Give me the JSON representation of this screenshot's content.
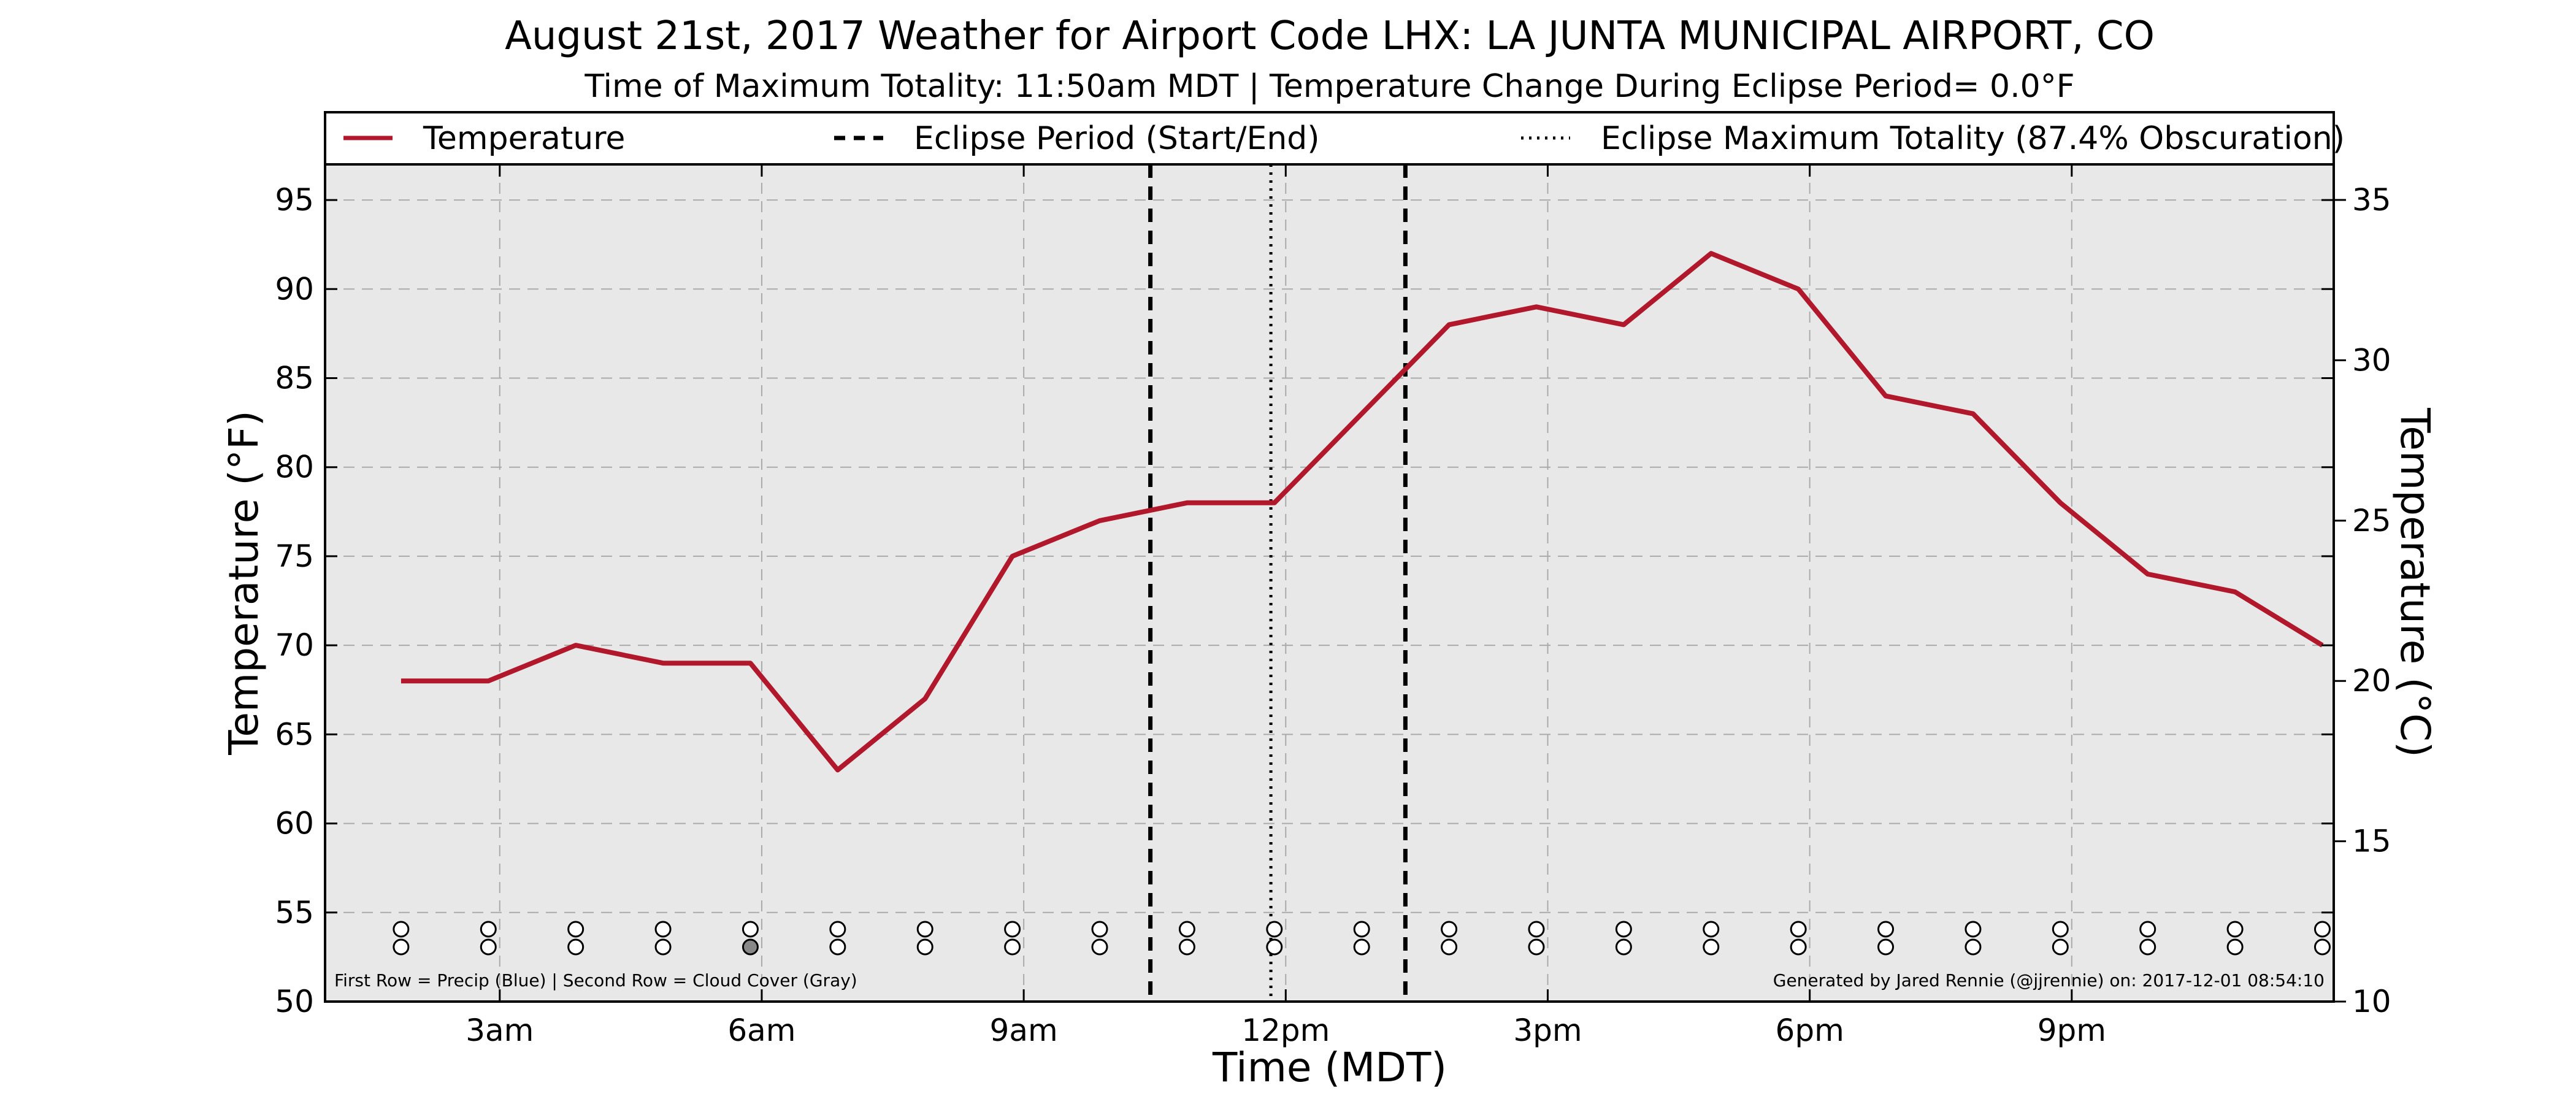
{
  "chart_data": {
    "type": "line",
    "title": "August 21st, 2017 Weather for Airport Code LHX: LA JUNTA MUNICIPAL AIRPORT, CO",
    "subtitle": "Time of Maximum Totality: 11:50am MDT | Temperature Change During Eclipse Period= 0.0$^\\circ$F",
    "subtitle_display": "Time of Maximum Totality: 11:50am MDT | Temperature Change During Eclipse Period= 0.0°F",
    "xlabel": "Time (MDT)",
    "ylabel": "Temperature ($^\\circ$F)",
    "ylabel_display": "Temperature (°F)",
    "y2label": "Temperature ($^\\circ$C)",
    "y2label_display": "Temperature (°C)",
    "xlim_hours": [
      1.0,
      24.0
    ],
    "ylim": [
      50,
      97
    ],
    "y2lim": [
      10,
      36.11
    ],
    "x_tick_hours": [
      3,
      6,
      9,
      12,
      15,
      18,
      21
    ],
    "x_tick_labels": [
      "3am",
      "6am",
      "9am",
      "12pm",
      "3pm",
      "6pm",
      "9pm"
    ],
    "y_ticks": [
      50,
      55,
      60,
      65,
      70,
      75,
      80,
      85,
      90,
      95
    ],
    "y2_ticks": [
      10,
      15,
      20,
      25,
      30,
      35
    ],
    "grid": true,
    "legend_placement": "top, full width",
    "series": [
      {
        "name": "Temperature",
        "color": "#b2182b",
        "x_hours": [
          1.87,
          2.87,
          3.87,
          4.87,
          5.87,
          6.87,
          7.87,
          8.87,
          9.87,
          10.87,
          11.87,
          12.87,
          13.87,
          14.87,
          15.87,
          16.87,
          17.87,
          18.87,
          19.87,
          20.87,
          21.87,
          22.87,
          23.87
        ],
        "values": [
          68,
          68,
          70,
          69,
          69,
          63,
          67,
          75,
          77,
          78,
          78,
          83,
          88,
          89,
          88,
          92,
          90,
          84,
          83,
          78,
          74,
          73,
          70
        ]
      }
    ],
    "eclipse_period": {
      "label": "Eclipse Period (Start/End)",
      "start_hour": 10.45,
      "end_hour": 13.37
    },
    "eclipse_max": {
      "label": "Eclipse Maximum Totality (87.4% Obscuration)",
      "hour": 11.83
    },
    "indicator_rows": {
      "x_hours": [
        1.87,
        2.87,
        3.87,
        4.87,
        5.87,
        6.87,
        7.87,
        8.87,
        9.87,
        10.87,
        11.87,
        12.87,
        13.87,
        14.87,
        15.87,
        16.87,
        17.87,
        18.87,
        19.87,
        20.87,
        21.87,
        22.87,
        23.87
      ],
      "precip_fill": [
        "none",
        "none",
        "none",
        "none",
        "none",
        "none",
        "none",
        "none",
        "none",
        "none",
        "none",
        "none",
        "none",
        "none",
        "none",
        "none",
        "none",
        "none",
        "none",
        "none",
        "none",
        "none",
        "none"
      ],
      "cloud_fill": [
        "none",
        "none",
        "none",
        "none",
        "#888888",
        "none",
        "none",
        "none",
        "none",
        "none",
        "none",
        "none",
        "none",
        "none",
        "none",
        "none",
        "none",
        "none",
        "none",
        "none",
        "none",
        "none",
        "none"
      ]
    },
    "footnote_left": "First Row = Precip (Blue) | Second Row = Cloud Cover (Gray)",
    "footnote_right": "Generated by Jared Rennie (@jjrennie) on: 2017-12-01 08:54:10",
    "colors": {
      "plot_background": "#e8e8e8",
      "grid": "#aaaaaa",
      "eclipse_lines": "#000000"
    }
  }
}
